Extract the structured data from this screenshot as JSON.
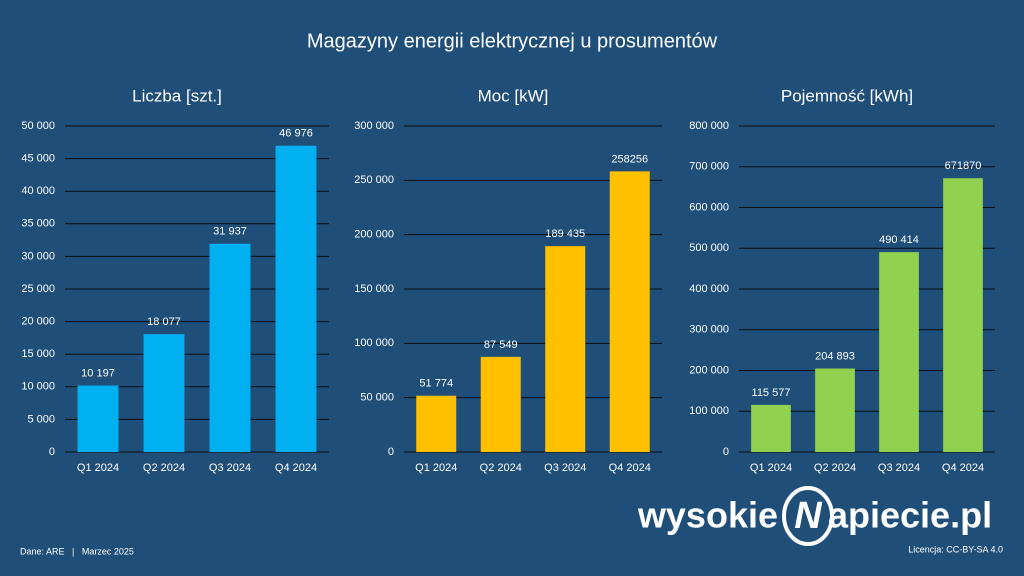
{
  "title": "Magazyny energii elektrycznej u prosumentów",
  "footer_left": "Dane: ARE   |   Marzec 2025",
  "footer_right": "Licencja: CC-BY-SA 4.0",
  "logo": {
    "left": "wysokie",
    "mark": "N",
    "right": "apiecie.pl"
  },
  "chart_data": [
    {
      "type": "bar",
      "title": "Liczba [szt.]",
      "categories": [
        "Q1 2024",
        "Q2 2024",
        "Q3 2024",
        "Q4 2024"
      ],
      "values": [
        10197,
        18077,
        31937,
        46976
      ],
      "value_labels": [
        "10 197",
        "18 077",
        "31 937",
        "46 976"
      ],
      "color": "#00b0f0",
      "ylim": [
        0,
        50000
      ],
      "grid": true,
      "yticks": [
        0,
        {
          "value": 5000,
          "label": "5 000"
        },
        {
          "value": 10000,
          "label": "10 000"
        },
        {
          "value": 15000,
          "label": "15 000"
        },
        {
          "value": 20000,
          "label": "20 000"
        },
        {
          "value": 25000,
          "label": "25 000"
        },
        {
          "value": 30000,
          "label": "30 000"
        },
        {
          "value": 35000,
          "label": "35 000"
        },
        {
          "value": 40000,
          "label": "40 000"
        },
        {
          "value": 45000,
          "label": "45 000"
        },
        {
          "value": 50000,
          "label": "50 000"
        }
      ]
    },
    {
      "type": "bar",
      "title": "Moc [kW]",
      "categories": [
        "Q1 2024",
        "Q2 2024",
        "Q3 2024",
        "Q4 2024"
      ],
      "values": [
        51774,
        87549,
        189435,
        258256
      ],
      "value_labels": [
        "51 774",
        "87 549",
        "189 435",
        "258256"
      ],
      "color": "#ffc000",
      "ylim": [
        0,
        300000
      ],
      "grid": true,
      "yticks": [
        0,
        {
          "value": 50000,
          "label": "50 000"
        },
        {
          "value": 100000,
          "label": "100 000"
        },
        {
          "value": 150000,
          "label": "150 000"
        },
        {
          "value": 200000,
          "label": "200 000"
        },
        {
          "value": 250000,
          "label": "250 000"
        },
        {
          "value": 300000,
          "label": "300 000"
        }
      ]
    },
    {
      "type": "bar",
      "title": "Pojemność [kWh]",
      "categories": [
        "Q1 2024",
        "Q2 2024",
        "Q3 2024",
        "Q4 2024"
      ],
      "values": [
        115577,
        204893,
        490414,
        671870
      ],
      "value_labels": [
        "115 577",
        "204 893",
        "490 414",
        "671870"
      ],
      "color": "#92d050",
      "ylim": [
        0,
        800000
      ],
      "grid": true,
      "yticks": [
        0,
        {
          "value": 100000,
          "label": "100 000"
        },
        {
          "value": 200000,
          "label": "200 000"
        },
        {
          "value": 300000,
          "label": "300 000"
        },
        {
          "value": 400000,
          "label": "400 000"
        },
        {
          "value": 500000,
          "label": "500 000"
        },
        {
          "value": 600000,
          "label": "600 000"
        },
        {
          "value": 700000,
          "label": "700 000"
        },
        {
          "value": 800000,
          "label": "800 000"
        }
      ]
    }
  ]
}
